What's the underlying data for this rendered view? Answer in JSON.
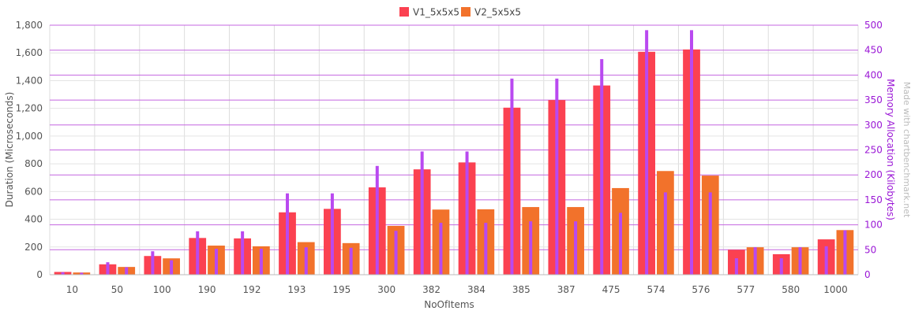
{
  "chart_data": {
    "type": "bar",
    "categories": [
      "10",
      "50",
      "100",
      "190",
      "192",
      "193",
      "195",
      "300",
      "382",
      "384",
      "385",
      "387",
      "475",
      "574",
      "576",
      "577",
      "580",
      "1000"
    ],
    "series": [
      {
        "name": "V1_5x5x5",
        "values": [
          20,
          75,
          135,
          265,
          262,
          450,
          475,
          630,
          760,
          810,
          1205,
          1260,
          1365,
          1608,
          1625,
          180,
          148,
          255
        ]
      },
      {
        "name": "V2_5x5x5",
        "values": [
          16,
          56,
          118,
          210,
          205,
          235,
          228,
          352,
          470,
          472,
          488,
          488,
          625,
          748,
          715,
          198,
          198,
          322
        ]
      }
    ],
    "memory_series": [
      {
        "values": [
          5,
          25,
          47,
          87,
          87,
          163,
          163,
          218,
          247,
          247,
          393,
          393,
          432,
          490,
          490,
          33,
          33,
          57
        ]
      },
      {
        "values": [
          4,
          15,
          29,
          52,
          52,
          55,
          54,
          88,
          104,
          104,
          107,
          107,
          124,
          165,
          165,
          55,
          55,
          89
        ]
      }
    ],
    "xlabel": "NoOfItems",
    "ylabel": "Duration (Microseconds)",
    "y2label": "Memory Allocation (Kilobytes)",
    "ylim": [
      0,
      1800
    ],
    "y2lim": [
      0,
      500
    ],
    "y_ticks": [
      "0",
      "200",
      "400",
      "600",
      "800",
      "1,000",
      "1,200",
      "1,400",
      "1,600",
      "1,800"
    ],
    "y2_ticks": [
      "0",
      "50",
      "100",
      "150",
      "200",
      "250",
      "300",
      "350",
      "400",
      "450",
      "500"
    ],
    "watermark": "Made with chartbenchmark.net",
    "legend_position": "top-center",
    "grid": true,
    "colors": {
      "v1": "#fb4151",
      "v2": "#f2722b",
      "memory": "#b949f0",
      "memory_axis": "#9b18d6",
      "grid_h": "#c466e0",
      "grid_v": "#dddddd",
      "axis_text": "#555555"
    }
  }
}
